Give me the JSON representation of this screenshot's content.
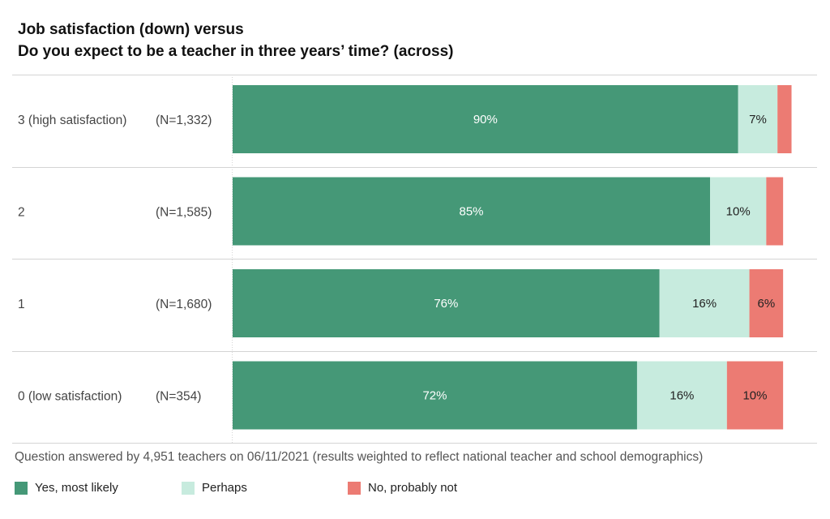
{
  "title_line1": "Job satisfaction (down) versus",
  "title_line2": "Do you expect to be a teacher in three years’ time? (across)",
  "footnote": "Question answered by 4,951 teachers on 06/11/2021 (results weighted to reflect national teacher and school demographics)",
  "colors": {
    "yes": "#459877",
    "perhaps": "#c7ebde",
    "no": "#ec7b73",
    "grid": "#d4d4d4"
  },
  "chart_data": {
    "type": "bar",
    "orientation": "horizontal",
    "stacked": true,
    "title": "Job satisfaction (down) versus Do you expect to be a teacher in three years’ time? (across)",
    "categories": [
      "3 (high satisfaction)",
      "2",
      "1",
      "0 (low satisfaction)"
    ],
    "counts": [
      "(N=1,332)",
      "(N=1,585)",
      "(N=1,680)",
      "(N=354)"
    ],
    "series": [
      {
        "name": "Yes, most likely",
        "values": [
          90,
          85,
          76,
          72
        ],
        "labels": [
          "90%",
          "85%",
          "76%",
          "72%"
        ]
      },
      {
        "name": "Perhaps",
        "values": [
          7,
          10,
          16,
          16
        ],
        "labels": [
          "7%",
          "10%",
          "16%",
          "16%"
        ]
      },
      {
        "name": "No, probably not",
        "values": [
          2.5,
          3,
          6,
          10
        ],
        "labels": [
          "",
          "",
          "6%",
          "10%"
        ]
      }
    ],
    "xlim": [
      0,
      100
    ],
    "legend_position": "bottom"
  }
}
